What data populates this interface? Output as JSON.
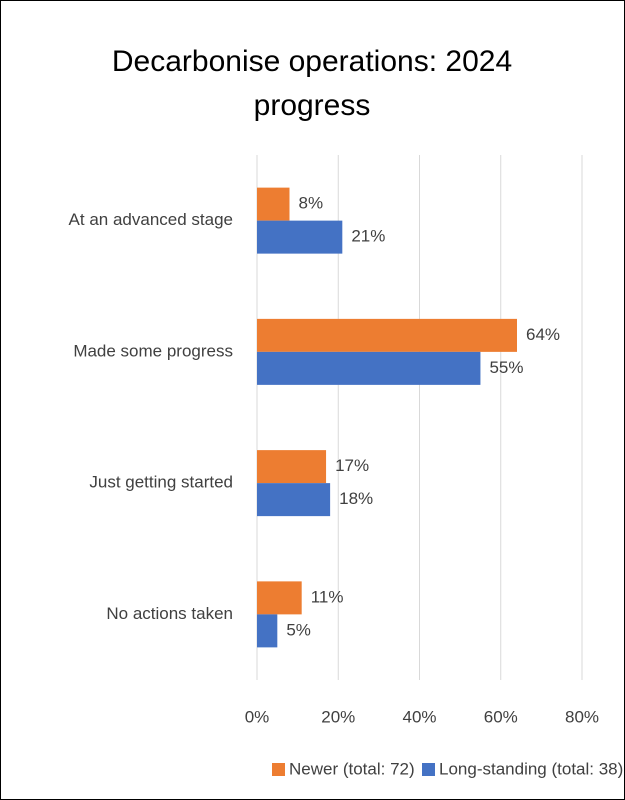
{
  "chart_data": {
    "type": "bar",
    "orientation": "horizontal",
    "title": "Decarbonise operations: 2024 progress",
    "categories": [
      "At an advanced stage",
      "Made some progress",
      "Just getting started",
      "No actions taken"
    ],
    "series": [
      {
        "name": "Newer (total: 72)",
        "color": "#ed7d31",
        "values": [
          8,
          64,
          17,
          11
        ],
        "value_labels": [
          "8%",
          "64%",
          "17%",
          "11%"
        ]
      },
      {
        "name": "Long-standing (total: 38)",
        "color": "#4472c4",
        "values": [
          21,
          55,
          18,
          5
        ],
        "value_labels": [
          "21%",
          "55%",
          "18%",
          "5%"
        ]
      }
    ],
    "xlim": [
      0,
      80
    ],
    "xticks": [
      {
        "value": 0,
        "label": "0%"
      },
      {
        "value": 20,
        "label": "20%"
      },
      {
        "value": 40,
        "label": "40%"
      },
      {
        "value": 60,
        "label": "60%"
      },
      {
        "value": 80,
        "label": "80%"
      }
    ],
    "grid": true,
    "legend": "bottom"
  }
}
